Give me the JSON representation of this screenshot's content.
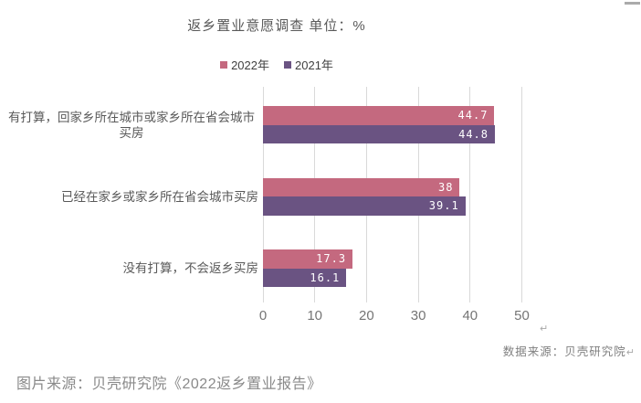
{
  "chart": {
    "title": "返乡置业意愿调查 单位：%",
    "legend": [
      {
        "label": "2022年",
        "color": "#c4697f"
      },
      {
        "label": "2021年",
        "color": "#6a5382"
      }
    ],
    "source_note": {
      "text": "数据来源：贝壳研究院",
      "return_mark": "↵"
    }
  },
  "chart_data": {
    "type": "bar",
    "orientation": "horizontal",
    "title": "返乡置业意愿调查 单位：%",
    "unit": "%",
    "categories": [
      "有打算，回家乡所在城市或家乡所在省会城市买房",
      "已经在家乡或家乡所在省会城市买房",
      "没有打算，不会返乡买房"
    ],
    "series": [
      {
        "name": "2022年",
        "color": "#c4697f",
        "values": [
          44.7,
          38,
          17.3
        ]
      },
      {
        "name": "2021年",
        "color": "#6a5382",
        "values": [
          44.8,
          39.1,
          16.1
        ]
      }
    ],
    "x_ticks": [
      0,
      10,
      20,
      30,
      40,
      50
    ],
    "xlim": [
      0,
      50
    ],
    "xlabel": "",
    "ylabel": "",
    "grid": true,
    "legend_position": "top",
    "value_labels": "inside-end",
    "gridline_color": "#d9d9d9"
  },
  "caption": "图片来源：贝壳研究院《2022返乡置业报告》"
}
